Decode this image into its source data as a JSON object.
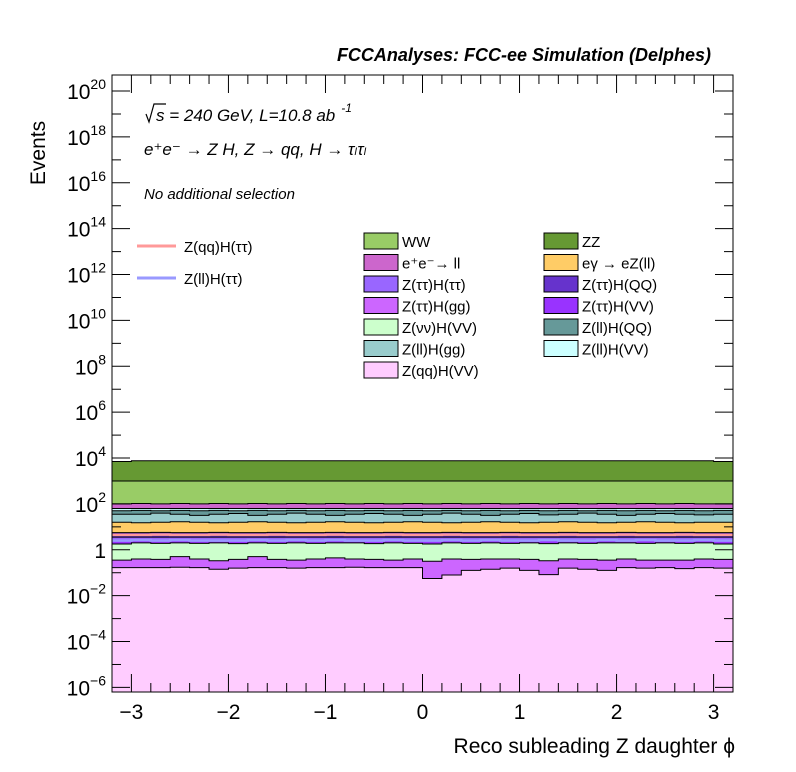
{
  "chart_data": {
    "type": "area",
    "title": "FCCAnalyses: FCC-ee Simulation (Delphes)",
    "xlabel": "Reco subleading Z daughter ϕ",
    "ylabel": "Events",
    "xlim": [
      -3.2,
      3.2
    ],
    "ylim_log10": [
      -6.2,
      20.7
    ],
    "log_y": true,
    "x_ticks": [
      -3,
      -2,
      -1,
      0,
      1,
      2,
      3
    ],
    "x_tick_labels": [
      "−3",
      "−2",
      "−1",
      "0",
      "1",
      "2",
      "3"
    ],
    "y_ticks": [
      {
        "base": "10",
        "exp": "20",
        "pow": 20
      },
      {
        "base": "10",
        "exp": "18",
        "pow": 18
      },
      {
        "base": "10",
        "exp": "16",
        "pow": 16
      },
      {
        "base": "10",
        "exp": "14",
        "pow": 14
      },
      {
        "base": "10",
        "exp": "12",
        "pow": 12
      },
      {
        "base": "10",
        "exp": "10",
        "pow": 10
      },
      {
        "base": "10",
        "exp": "8",
        "pow": 8
      },
      {
        "base": "10",
        "exp": "6",
        "pow": 6
      },
      {
        "base": "10",
        "exp": "4",
        "pow": 4
      },
      {
        "base": "10",
        "exp": "2",
        "pow": 2
      },
      {
        "base": "1",
        "exp": "",
        "pow": 0
      },
      {
        "base": "10",
        "exp": "−2",
        "pow": -2
      },
      {
        "base": "10",
        "exp": "−4",
        "pow": -4
      },
      {
        "base": "10",
        "exp": "−6",
        "pow": -6
      }
    ],
    "annotations": {
      "energy_line": {
        "sqrt": "s",
        "rest": " = 240 GeV, L=10.8 ab",
        "sup": "-1"
      },
      "process_line": "e⁺e⁻ → Z H, Z → qq, H → τₗτₗ",
      "selection": "No additional selection"
    },
    "n_bins": 32,
    "stacked_cumulative_top_log10": [
      {
        "name": "Z(qq)H(VV)",
        "color": "#ffccff",
        "values": [
          -0.78,
          -0.78,
          -0.78,
          -0.76,
          -0.78,
          -0.85,
          -0.8,
          -0.78,
          -0.78,
          -0.8,
          -0.78,
          -0.78,
          -0.76,
          -0.78,
          -0.78,
          -0.78,
          -1.25,
          -1.1,
          -0.9,
          -0.85,
          -0.8,
          -0.9,
          -1.08,
          -0.8,
          -0.85,
          -0.9,
          -0.78,
          -0.8,
          -0.78,
          -0.82,
          -0.78,
          -0.8
        ]
      },
      {
        "name": "Z(ττ)H(gg)",
        "color": "#cc66ff",
        "values": [
          -0.45,
          -0.4,
          -0.42,
          -0.3,
          -0.4,
          -0.48,
          -0.42,
          -0.3,
          -0.42,
          -0.45,
          -0.4,
          -0.35,
          -0.4,
          -0.42,
          -0.45,
          -0.4,
          -0.5,
          -0.4,
          -0.42,
          -0.4,
          -0.4,
          -0.42,
          -0.48,
          -0.4,
          -0.42,
          -0.45,
          -0.4,
          -0.45,
          -0.45,
          -0.45,
          -0.4,
          -0.42
        ]
      },
      {
        "name": "Z(νν)H(VV)",
        "color": "#ccffcc",
        "values": [
          0.25,
          0.3,
          0.28,
          0.3,
          0.28,
          0.3,
          0.27,
          0.3,
          0.28,
          0.3,
          0.28,
          0.3,
          0.3,
          0.27,
          0.3,
          0.28,
          0.25,
          0.3,
          0.28,
          0.3,
          0.28,
          0.3,
          0.27,
          0.3,
          0.28,
          0.3,
          0.3,
          0.28,
          0.3,
          0.28,
          0.3,
          0.25
        ]
      },
      {
        "name": "Z(ττ)H(VV)",
        "color": "#9933ff",
        "values": [
          0.4,
          0.42,
          0.42,
          0.42,
          0.4,
          0.42,
          0.4,
          0.42,
          0.42,
          0.4,
          0.42,
          0.42,
          0.4,
          0.42,
          0.42,
          0.4,
          0.4,
          0.42,
          0.4,
          0.42,
          0.42,
          0.4,
          0.42,
          0.4,
          0.42,
          0.42,
          0.4,
          0.42,
          0.4,
          0.42,
          0.42,
          0.4
        ]
      },
      {
        "name": "Z(ττ)H(ττ)",
        "color": "#9966ff",
        "values": [
          0.55,
          0.55,
          0.55,
          0.55,
          0.55,
          0.55,
          0.55,
          0.55,
          0.55,
          0.55,
          0.55,
          0.55,
          0.55,
          0.55,
          0.55,
          0.55,
          0.55,
          0.55,
          0.55,
          0.55,
          0.55,
          0.55,
          0.55,
          0.55,
          0.55,
          0.55,
          0.55,
          0.55,
          0.55,
          0.55,
          0.55,
          0.55
        ]
      },
      {
        "name": "Z(ττ)H(QQ)",
        "color": "#6633cc",
        "values": [
          0.75,
          0.75,
          0.76,
          0.75,
          0.75,
          0.76,
          0.75,
          0.75,
          0.76,
          0.75,
          0.75,
          0.76,
          0.75,
          0.75,
          0.76,
          0.75,
          0.75,
          0.76,
          0.75,
          0.75,
          0.76,
          0.75,
          0.75,
          0.76,
          0.75,
          0.75,
          0.76,
          0.75,
          0.75,
          0.76,
          0.75,
          0.75
        ]
      },
      {
        "name": "eγ → eZ(ll)",
        "color": "#ffcc66",
        "values": [
          1.2,
          1.18,
          1.2,
          1.22,
          1.2,
          1.18,
          1.2,
          1.22,
          1.2,
          1.18,
          1.2,
          1.22,
          1.2,
          1.18,
          1.2,
          1.22,
          1.2,
          1.18,
          1.2,
          1.22,
          1.2,
          1.18,
          1.2,
          1.22,
          1.2,
          1.18,
          1.2,
          1.22,
          1.2,
          1.18,
          1.2,
          1.2
        ]
      },
      {
        "name": "Z(ll)H(gg)",
        "color": "#99cccc",
        "values": [
          1.55,
          1.55,
          1.6,
          1.55,
          1.5,
          1.55,
          1.58,
          1.5,
          1.55,
          1.6,
          1.55,
          1.5,
          1.55,
          1.58,
          1.55,
          1.5,
          1.55,
          1.6,
          1.55,
          1.5,
          1.55,
          1.58,
          1.52,
          1.55,
          1.6,
          1.55,
          1.5,
          1.55,
          1.58,
          1.55,
          1.52,
          1.55
        ]
      },
      {
        "name": "Z(ll)H(QQ)",
        "color": "#669999",
        "values": [
          1.7,
          1.72,
          1.7,
          1.72,
          1.7,
          1.72,
          1.7,
          1.72,
          1.7,
          1.72,
          1.7,
          1.72,
          1.7,
          1.72,
          1.7,
          1.72,
          1.7,
          1.72,
          1.7,
          1.72,
          1.7,
          1.72,
          1.7,
          1.72,
          1.7,
          1.72,
          1.7,
          1.72,
          1.7,
          1.72,
          1.7,
          1.72
        ]
      },
      {
        "name": "Z(ll)H(VV)",
        "color": "#ccffff",
        "values": [
          1.8,
          1.8,
          1.8,
          1.8,
          1.8,
          1.8,
          1.8,
          1.8,
          1.8,
          1.8,
          1.8,
          1.8,
          1.8,
          1.8,
          1.8,
          1.8,
          1.8,
          1.8,
          1.8,
          1.8,
          1.8,
          1.8,
          1.8,
          1.8,
          1.8,
          1.8,
          1.8,
          1.8,
          1.8,
          1.8,
          1.8,
          1.8
        ]
      },
      {
        "name": "e⁺e⁻→ ll",
        "color": "#cc66cc",
        "values": [
          2.0,
          2.02,
          2.0,
          2.02,
          2.0,
          2.02,
          2.0,
          2.02,
          2.0,
          2.02,
          2.0,
          2.02,
          2.0,
          2.02,
          2.0,
          2.02,
          2.0,
          2.02,
          2.0,
          2.02,
          2.0,
          2.02,
          2.0,
          2.02,
          2.0,
          2.02,
          2.0,
          2.02,
          2.0,
          2.02,
          2.0,
          2.0
        ]
      },
      {
        "name": "WW",
        "color": "#99cc66",
        "values": [
          3.0,
          3.0,
          3.0,
          3.0,
          3.0,
          3.0,
          3.0,
          3.0,
          3.0,
          3.0,
          3.0,
          3.0,
          3.0,
          3.0,
          3.0,
          3.0,
          3.0,
          3.0,
          3.0,
          3.0,
          3.0,
          3.0,
          3.0,
          3.0,
          3.0,
          3.0,
          3.0,
          3.0,
          3.0,
          3.0,
          3.0,
          3.0
        ]
      },
      {
        "name": "ZZ",
        "color": "#669933",
        "values": [
          3.85,
          3.88,
          3.88,
          3.88,
          3.88,
          3.88,
          3.88,
          3.88,
          3.88,
          3.88,
          3.88,
          3.88,
          3.88,
          3.88,
          3.88,
          3.88,
          3.88,
          3.88,
          3.88,
          3.88,
          3.88,
          3.88,
          3.88,
          3.88,
          3.88,
          3.88,
          3.88,
          3.88,
          3.88,
          3.88,
          3.88,
          3.85
        ]
      }
    ],
    "signal_lines": [
      {
        "name": "Z(qq)H(ττ)",
        "color": "#ff9999",
        "values": [
          0.65,
          0.65,
          0.66,
          0.65,
          0.65,
          0.66,
          0.65,
          0.65,
          0.66,
          0.65,
          0.65,
          0.66,
          0.65,
          0.65,
          0.66,
          0.65,
          0.65,
          0.66,
          0.65,
          0.65,
          0.66,
          0.65,
          0.65,
          0.66,
          0.65,
          0.65,
          0.66,
          0.65,
          0.65,
          0.66,
          0.65,
          0.65
        ]
      },
      {
        "name": "Z(ll)H(ττ)",
        "color": "#9999ff",
        "values": [
          0.4,
          0.42,
          0.4,
          0.42,
          0.4,
          0.4,
          0.4,
          0.42,
          0.4,
          0.42,
          0.4,
          0.42,
          0.4,
          0.4,
          0.42,
          0.4,
          0.4,
          0.42,
          0.4,
          0.42,
          0.4,
          0.4,
          0.42,
          0.4,
          0.4,
          0.42,
          0.4,
          0.42,
          0.4,
          0.4,
          0.42,
          0.4
        ]
      }
    ],
    "legend_lines": [
      {
        "label": "Z(qq)H(ττ)",
        "color": "#ff9999"
      },
      {
        "label": "Z(ll)H(ττ)",
        "color": "#9999ff"
      }
    ],
    "legend_boxes": [
      {
        "label": "WW",
        "color": "#99cc66"
      },
      {
        "label": "ZZ",
        "color": "#669933"
      },
      {
        "label": "e⁺e⁻→ ll",
        "color": "#cc66cc"
      },
      {
        "label": "eγ → eZ(ll)",
        "color": "#ffcc66"
      },
      {
        "label": "Z(ττ)H(ττ)",
        "color": "#9966ff"
      },
      {
        "label": "Z(ττ)H(QQ)",
        "color": "#6633cc"
      },
      {
        "label": "Z(ττ)H(gg)",
        "color": "#cc66ff"
      },
      {
        "label": "Z(ττ)H(VV)",
        "color": "#9933ff"
      },
      {
        "label": "Z(νν)H(VV)",
        "color": "#ccffcc"
      },
      {
        "label": "Z(ll)H(QQ)",
        "color": "#669999"
      },
      {
        "label": "Z(ll)H(gg)",
        "color": "#99cccc"
      },
      {
        "label": "Z(ll)H(VV)",
        "color": "#ccffff"
      },
      {
        "label": "Z(qq)H(VV)",
        "color": "#ffccff"
      }
    ]
  }
}
